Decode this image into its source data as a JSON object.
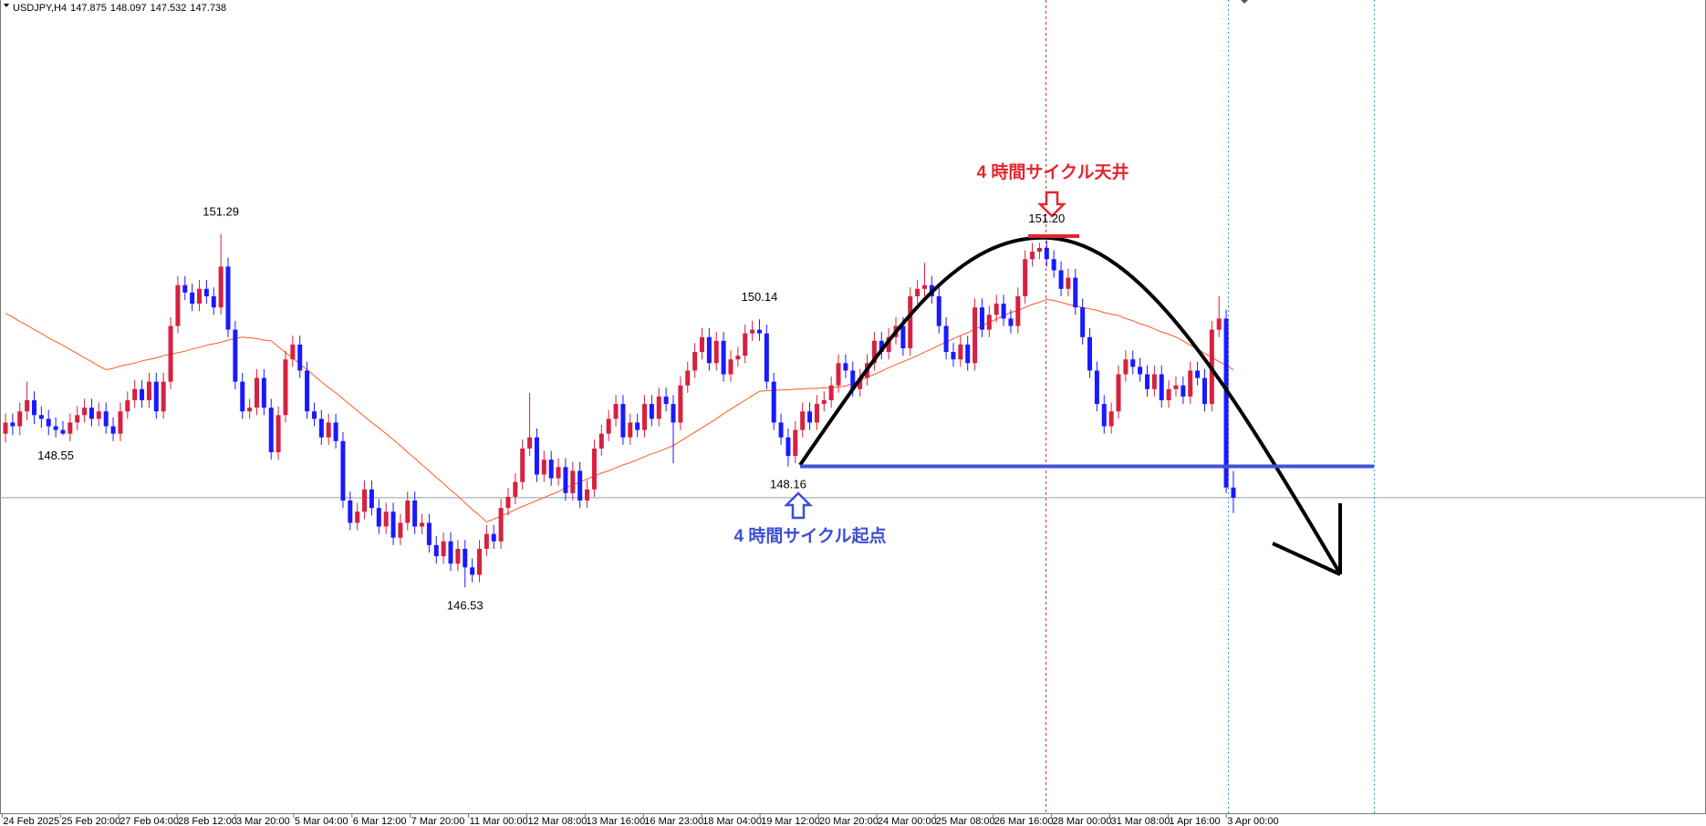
{
  "chart_data": {
    "type": "candlestick",
    "title": "USDJPY,H4",
    "ylim": [
      143.49,
      154.23
    ],
    "bull_color": "#d6213f",
    "bear_color": "#1a1aff",
    "ma_color": "#ff5a1f",
    "time_labels": [
      "24 Feb 2025",
      "25 Feb 20:00",
      "27 Feb 04:00",
      "28 Feb 12:00",
      "3 Mar 20:00",
      "5 Mar 04:00",
      "6 Mar 12:00",
      "7 Mar 20:00",
      "11 Mar 00:00",
      "12 Mar 08:00",
      "13 Mar 16:00",
      "16 Mar 23:00",
      "18 Mar 04:00",
      "19 Mar 12:00",
      "20 Mar 20:00",
      "24 Mar 00:00",
      "25 Mar 08:00",
      "26 Mar 16:00",
      "28 Mar 00:00",
      "31 Mar 08:00",
      "1 Apr 16:00",
      "3 Apr 00:00"
    ],
    "price_labels": [
      {
        "value": 151.29,
        "label": "151.29"
      },
      {
        "value": 148.55,
        "label": "148.55"
      },
      {
        "value": 146.53,
        "label": "146.53"
      },
      {
        "value": 150.14,
        "label": "150.14"
      },
      {
        "value": 148.16,
        "label": "148.16"
      },
      {
        "value": 151.2,
        "label": "151.20"
      }
    ],
    "annotations": [
      {
        "text": "4 時間サイクル天井",
        "color": "#e3262f"
      },
      {
        "text": "4 時間サイクル起点",
        "color": "#3b4fd8"
      }
    ],
    "ohlc": [
      [
        148.6,
        148.87,
        148.48,
        148.75
      ],
      [
        148.75,
        148.87,
        148.58,
        148.7
      ],
      [
        148.7,
        149.02,
        148.58,
        148.9
      ],
      [
        148.9,
        149.3,
        148.78,
        149.05
      ],
      [
        149.05,
        149.17,
        148.73,
        148.85
      ],
      [
        148.85,
        148.97,
        148.68,
        148.8
      ],
      [
        148.8,
        148.92,
        148.58,
        148.7
      ],
      [
        148.7,
        148.82,
        148.55,
        148.65
      ],
      [
        148.65,
        148.77,
        148.58,
        148.6
      ],
      [
        148.6,
        148.87,
        148.5,
        148.75
      ],
      [
        148.75,
        148.97,
        148.65,
        148.85
      ],
      [
        148.85,
        149.07,
        148.75,
        148.95
      ],
      [
        148.95,
        149.07,
        148.7,
        148.8
      ],
      [
        148.8,
        149.02,
        148.7,
        148.9
      ],
      [
        148.9,
        149.02,
        148.6,
        148.7
      ],
      [
        148.7,
        148.82,
        148.5,
        148.6
      ],
      [
        148.6,
        149.02,
        148.5,
        148.9
      ],
      [
        148.9,
        149.17,
        148.8,
        149.05
      ],
      [
        149.05,
        149.32,
        148.95,
        149.2
      ],
      [
        149.2,
        149.32,
        148.95,
        149.05
      ],
      [
        149.05,
        149.42,
        148.95,
        149.3
      ],
      [
        149.3,
        149.42,
        148.8,
        148.9
      ],
      [
        148.9,
        149.42,
        148.8,
        149.3
      ],
      [
        149.3,
        150.17,
        149.2,
        150.05
      ],
      [
        150.05,
        150.72,
        149.95,
        150.6
      ],
      [
        150.6,
        150.72,
        150.4,
        150.5
      ],
      [
        150.5,
        150.62,
        150.25,
        150.35
      ],
      [
        150.35,
        150.67,
        150.25,
        150.55
      ],
      [
        150.55,
        150.67,
        150.35,
        150.45
      ],
      [
        150.45,
        150.57,
        150.2,
        150.3
      ],
      [
        150.3,
        151.29,
        150.2,
        150.85
      ],
      [
        150.85,
        150.97,
        149.9,
        150.0
      ],
      [
        150.0,
        150.12,
        149.2,
        149.3
      ],
      [
        149.3,
        149.42,
        148.8,
        148.9
      ],
      [
        148.9,
        149.07,
        148.8,
        148.95
      ],
      [
        148.95,
        149.47,
        148.85,
        149.35
      ],
      [
        149.35,
        149.47,
        148.85,
        148.95
      ],
      [
        148.95,
        149.07,
        148.25,
        148.35
      ],
      [
        148.35,
        148.97,
        148.25,
        148.85
      ],
      [
        148.85,
        149.72,
        148.75,
        149.6
      ],
      [
        149.6,
        149.92,
        149.5,
        149.8
      ],
      [
        149.8,
        149.92,
        149.35,
        149.45
      ],
      [
        149.45,
        149.57,
        148.8,
        148.9
      ],
      [
        148.9,
        149.02,
        148.7,
        148.8
      ],
      [
        148.8,
        148.92,
        148.45,
        148.55
      ],
      [
        148.55,
        148.87,
        148.45,
        148.75
      ],
      [
        148.75,
        148.87,
        148.4,
        148.5
      ],
      [
        148.5,
        148.62,
        147.6,
        147.7
      ],
      [
        147.7,
        147.82,
        147.3,
        147.4
      ],
      [
        147.4,
        147.67,
        147.3,
        147.55
      ],
      [
        147.55,
        147.97,
        147.45,
        147.85
      ],
      [
        147.85,
        147.97,
        147.5,
        147.6
      ],
      [
        147.6,
        147.72,
        147.25,
        147.35
      ],
      [
        147.35,
        147.67,
        147.25,
        147.55
      ],
      [
        147.55,
        147.67,
        147.1,
        147.2
      ],
      [
        147.2,
        147.52,
        147.1,
        147.4
      ],
      [
        147.4,
        147.82,
        147.3,
        147.7
      ],
      [
        147.7,
        147.82,
        147.25,
        147.35
      ],
      [
        147.35,
        147.52,
        147.25,
        147.4
      ],
      [
        147.4,
        147.52,
        147.0,
        147.1
      ],
      [
        147.1,
        147.22,
        146.85,
        146.95
      ],
      [
        146.95,
        147.27,
        146.85,
        147.15
      ],
      [
        147.15,
        147.27,
        146.75,
        146.85
      ],
      [
        146.85,
        147.17,
        146.75,
        147.05
      ],
      [
        147.05,
        147.17,
        146.53,
        146.8
      ],
      [
        146.8,
        146.92,
        146.6,
        146.7
      ],
      [
        146.7,
        147.17,
        146.6,
        147.05
      ],
      [
        147.05,
        147.37,
        146.95,
        147.25
      ],
      [
        147.25,
        147.37,
        147.05,
        147.15
      ],
      [
        147.15,
        147.72,
        147.05,
        147.6
      ],
      [
        147.6,
        147.87,
        147.5,
        147.75
      ],
      [
        147.75,
        148.07,
        147.65,
        147.95
      ],
      [
        147.95,
        148.52,
        147.85,
        148.4
      ],
      [
        148.4,
        149.15,
        148.3,
        148.55
      ],
      [
        148.55,
        148.67,
        147.95,
        148.05
      ],
      [
        148.05,
        148.37,
        147.95,
        148.25
      ],
      [
        148.25,
        148.37,
        147.9,
        148.0
      ],
      [
        148.0,
        148.27,
        147.9,
        148.15
      ],
      [
        148.15,
        148.27,
        147.7,
        147.8
      ],
      [
        147.8,
        148.22,
        147.7,
        148.1
      ],
      [
        148.1,
        148.22,
        147.6,
        147.7
      ],
      [
        147.7,
        147.97,
        147.6,
        147.85
      ],
      [
        147.85,
        148.52,
        147.75,
        148.4
      ],
      [
        148.4,
        148.72,
        148.3,
        148.6
      ],
      [
        148.6,
        148.92,
        148.5,
        148.8
      ],
      [
        148.8,
        149.12,
        148.7,
        149.0
      ],
      [
        149.0,
        149.12,
        148.45,
        148.55
      ],
      [
        148.55,
        148.87,
        148.45,
        148.75
      ],
      [
        148.75,
        148.87,
        148.55,
        148.65
      ],
      [
        148.65,
        149.12,
        148.55,
        149.0
      ],
      [
        149.0,
        149.12,
        148.7,
        148.8
      ],
      [
        148.8,
        149.22,
        148.7,
        149.1
      ],
      [
        149.1,
        149.22,
        148.9,
        149.0
      ],
      [
        149.0,
        149.12,
        148.2,
        148.75
      ],
      [
        148.75,
        149.37,
        148.65,
        149.25
      ],
      [
        149.25,
        149.57,
        149.15,
        149.45
      ],
      [
        149.45,
        149.82,
        149.35,
        149.7
      ],
      [
        149.7,
        150.02,
        149.6,
        149.9
      ],
      [
        149.9,
        150.02,
        149.45,
        149.55
      ],
      [
        149.55,
        149.97,
        149.45,
        149.85
      ],
      [
        149.85,
        149.97,
        149.3,
        149.4
      ],
      [
        149.4,
        149.72,
        149.3,
        149.6
      ],
      [
        149.6,
        149.77,
        149.5,
        149.65
      ],
      [
        149.65,
        150.07,
        149.55,
        149.95
      ],
      [
        149.95,
        150.12,
        149.85,
        150.0
      ],
      [
        150.0,
        150.14,
        149.85,
        149.95
      ],
      [
        149.95,
        150.07,
        149.2,
        149.3
      ],
      [
        149.3,
        149.42,
        148.65,
        148.75
      ],
      [
        148.75,
        148.87,
        148.45,
        148.55
      ],
      [
        148.55,
        148.67,
        148.16,
        148.3
      ],
      [
        148.3,
        148.77,
        148.2,
        148.65
      ],
      [
        148.65,
        149.02,
        148.55,
        148.9
      ],
      [
        148.9,
        149.02,
        148.65,
        148.75
      ],
      [
        148.75,
        149.12,
        148.65,
        149.0
      ],
      [
        149.0,
        149.17,
        148.9,
        149.05
      ],
      [
        149.05,
        149.37,
        148.95,
        149.25
      ],
      [
        149.25,
        149.67,
        149.15,
        149.55
      ],
      [
        149.55,
        149.67,
        149.35,
        149.45
      ],
      [
        149.45,
        149.57,
        149.1,
        149.2
      ],
      [
        149.2,
        149.47,
        149.1,
        149.35
      ],
      [
        149.35,
        149.67,
        149.25,
        149.55
      ],
      [
        149.55,
        149.97,
        149.45,
        149.85
      ],
      [
        149.85,
        149.97,
        149.6,
        149.7
      ],
      [
        149.7,
        150.02,
        149.6,
        149.9
      ],
      [
        149.9,
        150.17,
        149.8,
        150.05
      ],
      [
        150.05,
        150.17,
        149.65,
        149.75
      ],
      [
        149.75,
        150.57,
        149.65,
        150.45
      ],
      [
        150.45,
        150.67,
        150.35,
        150.55
      ],
      [
        150.55,
        150.9,
        150.45,
        150.6
      ],
      [
        150.6,
        150.72,
        150.35,
        150.45
      ],
      [
        150.45,
        150.57,
        149.95,
        150.05
      ],
      [
        150.05,
        150.17,
        149.6,
        149.7
      ],
      [
        149.7,
        149.82,
        149.5,
        149.6
      ],
      [
        149.6,
        149.92,
        149.5,
        149.8
      ],
      [
        149.8,
        149.92,
        149.45,
        149.55
      ],
      [
        149.55,
        150.42,
        149.45,
        150.3
      ],
      [
        150.3,
        150.42,
        149.9,
        150.0
      ],
      [
        150.0,
        150.32,
        149.9,
        150.2
      ],
      [
        150.2,
        150.47,
        150.1,
        150.35
      ],
      [
        150.35,
        150.47,
        150.05,
        150.15
      ],
      [
        150.15,
        150.27,
        149.95,
        150.05
      ],
      [
        150.05,
        150.57,
        149.95,
        150.45
      ],
      [
        150.45,
        151.07,
        150.35,
        150.95
      ],
      [
        150.95,
        151.17,
        150.85,
        151.05
      ],
      [
        151.05,
        151.17,
        150.95,
        151.1
      ],
      [
        151.1,
        151.2,
        150.85,
        150.95
      ],
      [
        150.95,
        151.07,
        150.7,
        150.8
      ],
      [
        150.8,
        150.92,
        150.45,
        150.55
      ],
      [
        150.55,
        150.82,
        150.45,
        150.7
      ],
      [
        150.7,
        150.82,
        150.2,
        150.3
      ],
      [
        150.3,
        150.42,
        149.8,
        149.9
      ],
      [
        149.9,
        150.02,
        149.35,
        149.45
      ],
      [
        149.45,
        149.57,
        148.9,
        149.0
      ],
      [
        149.0,
        149.12,
        148.6,
        148.7
      ],
      [
        148.7,
        149.02,
        148.6,
        148.9
      ],
      [
        148.9,
        149.52,
        148.8,
        149.4
      ],
      [
        149.4,
        149.72,
        149.3,
        149.6
      ],
      [
        149.6,
        149.72,
        149.4,
        149.5
      ],
      [
        149.5,
        149.62,
        149.3,
        149.4
      ],
      [
        149.4,
        149.52,
        149.1,
        149.2
      ],
      [
        149.2,
        149.52,
        149.1,
        149.4
      ],
      [
        149.4,
        149.52,
        148.95,
        149.05
      ],
      [
        149.05,
        149.32,
        148.95,
        149.2
      ],
      [
        149.2,
        149.37,
        149.1,
        149.25
      ],
      [
        149.25,
        149.37,
        149.0,
        149.1
      ],
      [
        149.1,
        149.57,
        149.0,
        149.45
      ],
      [
        149.45,
        149.57,
        149.25,
        149.35
      ],
      [
        149.35,
        149.47,
        148.9,
        149.0
      ],
      [
        149.0,
        150.12,
        148.9,
        150.0
      ],
      [
        150.0,
        150.45,
        149.9,
        150.15
      ],
      [
        150.15,
        150.27,
        147.8,
        147.875
      ],
      [
        147.875,
        148.097,
        147.532,
        147.738
      ]
    ],
    "ma": [
      150.22,
      150.17,
      150.11,
      150.06,
      150.0,
      149.95,
      149.89,
      149.84,
      149.79,
      149.73,
      149.68,
      149.62,
      149.57,
      149.51,
      149.46,
      149.48,
      149.51,
      149.53,
      149.55,
      149.58,
      149.6,
      149.62,
      149.65,
      149.67,
      149.69,
      149.71,
      149.74,
      149.76,
      149.79,
      149.81,
      149.83,
      149.86,
      149.88,
      149.9,
      149.89,
      149.88,
      149.86,
      149.85,
      149.77,
      149.69,
      149.62,
      149.54,
      149.46,
      149.38,
      149.3,
      149.22,
      149.15,
      149.07,
      148.99,
      148.91,
      148.83,
      148.75,
      148.68,
      148.6,
      148.52,
      148.44,
      148.35,
      148.27,
      148.18,
      148.1,
      148.01,
      147.93,
      147.84,
      147.76,
      147.67,
      147.58,
      147.5,
      147.41,
      147.45,
      147.49,
      147.53,
      147.58,
      147.62,
      147.66,
      147.7,
      147.74,
      147.78,
      147.82,
      147.87,
      147.91,
      147.95,
      147.99,
      148.03,
      148.07,
      148.1,
      148.14,
      148.18,
      148.21,
      148.25,
      148.29,
      148.33,
      148.36,
      148.4,
      148.44,
      148.5,
      148.56,
      148.62,
      148.68,
      148.74,
      148.8,
      148.87,
      148.93,
      148.99,
      149.05,
      149.11,
      149.17,
      149.18,
      149.18,
      149.19,
      149.19,
      149.2,
      149.2,
      149.21,
      149.21,
      149.22,
      149.22,
      149.23,
      149.24,
      149.28,
      149.32,
      149.36,
      149.4,
      149.44,
      149.49,
      149.53,
      149.57,
      149.61,
      149.65,
      149.7,
      149.74,
      149.79,
      149.83,
      149.88,
      149.92,
      149.96,
      150.01,
      150.05,
      150.1,
      150.14,
      150.19,
      150.23,
      150.26,
      150.3,
      150.34,
      150.37,
      150.41,
      150.39,
      150.37,
      150.34,
      150.32,
      150.3,
      150.28,
      150.26,
      150.23,
      150.21,
      150.19,
      150.15,
      150.12,
      150.08,
      150.05,
      150.01,
      149.97,
      149.94,
      149.9,
      149.85,
      149.79,
      149.74,
      149.68,
      149.63,
      149.57,
      149.52,
      149.46
    ]
  }
}
